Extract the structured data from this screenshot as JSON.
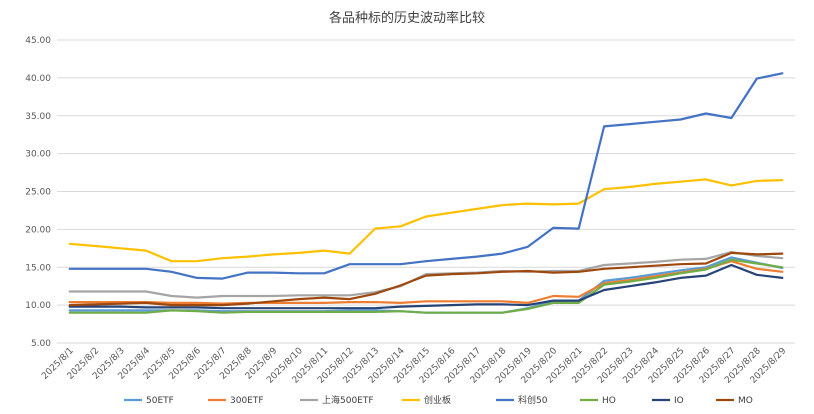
{
  "chart_data": {
    "type": "line",
    "title": "各品种标的历史波动率比较",
    "xlabel": "",
    "ylabel": "",
    "ylim": [
      5,
      45
    ],
    "yticks": [
      "5.00",
      "10.00",
      "15.00",
      "20.00",
      "25.00",
      "30.00",
      "35.00",
      "40.00",
      "45.00"
    ],
    "grid": true,
    "legend_position": "bottom",
    "categories": [
      "2025/8/1",
      "2025/8/2",
      "2025/8/3",
      "2025/8/4",
      "2025/8/5",
      "2025/8/6",
      "2025/8/7",
      "2025/8/8",
      "2025/8/9",
      "2025/8/10",
      "2025/8/11",
      "2025/8/12",
      "2025/8/13",
      "2025/8/14",
      "2025/8/15",
      "2025/8/16",
      "2025/8/17",
      "2025/8/18",
      "2025/8/19",
      "2025/8/20",
      "2025/8/21",
      "2025/8/22",
      "2025/8/23",
      "2025/8/24",
      "2025/8/25",
      "2025/8/26",
      "2025/8/27",
      "2025/8/28",
      "2025/8/29"
    ],
    "series": [
      {
        "name": "50ETF",
        "color": "#5B9BD5",
        "values": [
          9.3,
          9.3,
          9.3,
          9.3,
          9.3,
          9.3,
          9.2,
          9.2,
          9.2,
          9.2,
          9.2,
          9.3,
          9.3,
          9.2,
          9.0,
          9.0,
          9.0,
          9.0,
          9.6,
          10.5,
          10.6,
          13.2,
          13.6,
          14.1,
          14.6,
          15.0,
          16.3,
          15.6,
          14.9
        ]
      },
      {
        "name": "300ETF",
        "color": "#ED7D31",
        "values": [
          10.4,
          10.4,
          10.4,
          10.4,
          10.3,
          10.3,
          10.2,
          10.3,
          10.3,
          10.3,
          10.3,
          10.4,
          10.4,
          10.3,
          10.5,
          10.5,
          10.5,
          10.5,
          10.3,
          11.2,
          11.1,
          12.9,
          13.3,
          13.8,
          14.3,
          14.8,
          15.8,
          14.8,
          14.4
        ]
      },
      {
        "name": "上海500ETF",
        "color": "#A5A5A5",
        "values": [
          11.8,
          11.8,
          11.8,
          11.8,
          11.2,
          11.0,
          11.2,
          11.2,
          11.2,
          11.3,
          11.3,
          11.3,
          11.7,
          12.5,
          14.1,
          14.2,
          14.3,
          14.5,
          14.4,
          14.5,
          14.5,
          15.3,
          15.5,
          15.7,
          16.0,
          16.1,
          17.0,
          16.5,
          16.2
        ]
      },
      {
        "name": "创业板",
        "color": "#FFC000",
        "values": [
          18.1,
          17.8,
          17.5,
          17.2,
          15.8,
          15.8,
          16.2,
          16.4,
          16.7,
          16.9,
          17.2,
          16.8,
          20.1,
          20.4,
          21.7,
          22.2,
          22.7,
          23.2,
          23.4,
          23.3,
          23.4,
          25.3,
          25.6,
          26.0,
          26.3,
          26.6,
          25.8,
          26.4,
          26.5
        ]
      },
      {
        "name": "科创50",
        "color": "#4472C4",
        "values": [
          14.8,
          14.8,
          14.8,
          14.8,
          14.4,
          13.6,
          13.5,
          14.3,
          14.3,
          14.2,
          14.2,
          15.4,
          15.4,
          15.4,
          15.8,
          16.1,
          16.4,
          16.8,
          17.7,
          20.2,
          20.1,
          33.6,
          33.9,
          34.2,
          34.5,
          35.3,
          34.7,
          39.9,
          40.6
        ]
      },
      {
        "name": "HO",
        "color": "#70AD47",
        "values": [
          9.0,
          9.0,
          9.0,
          9.0,
          9.3,
          9.2,
          9.0,
          9.1,
          9.1,
          9.1,
          9.1,
          9.1,
          9.1,
          9.2,
          9.0,
          9.0,
          9.0,
          9.0,
          9.5,
          10.3,
          10.3,
          12.7,
          13.1,
          13.6,
          14.2,
          14.7,
          16.0,
          15.5,
          15.0
        ]
      },
      {
        "name": "IO",
        "color": "#264478",
        "values": [
          9.8,
          9.8,
          9.8,
          9.7,
          9.7,
          9.7,
          9.6,
          9.6,
          9.6,
          9.6,
          9.6,
          9.6,
          9.6,
          9.8,
          9.9,
          10.0,
          10.1,
          10.1,
          10.0,
          10.6,
          10.6,
          12.0,
          12.5,
          13.0,
          13.6,
          13.9,
          15.3,
          14.0,
          13.6
        ]
      },
      {
        "name": "MO",
        "color": "#9E480E",
        "values": [
          10.0,
          10.1,
          10.2,
          10.3,
          10.0,
          10.0,
          10.0,
          10.2,
          10.5,
          10.8,
          11.0,
          10.8,
          11.5,
          12.6,
          13.9,
          14.1,
          14.2,
          14.4,
          14.5,
          14.3,
          14.4,
          14.8,
          15.0,
          15.2,
          15.4,
          15.5,
          16.9,
          16.7,
          16.8
        ]
      }
    ]
  }
}
